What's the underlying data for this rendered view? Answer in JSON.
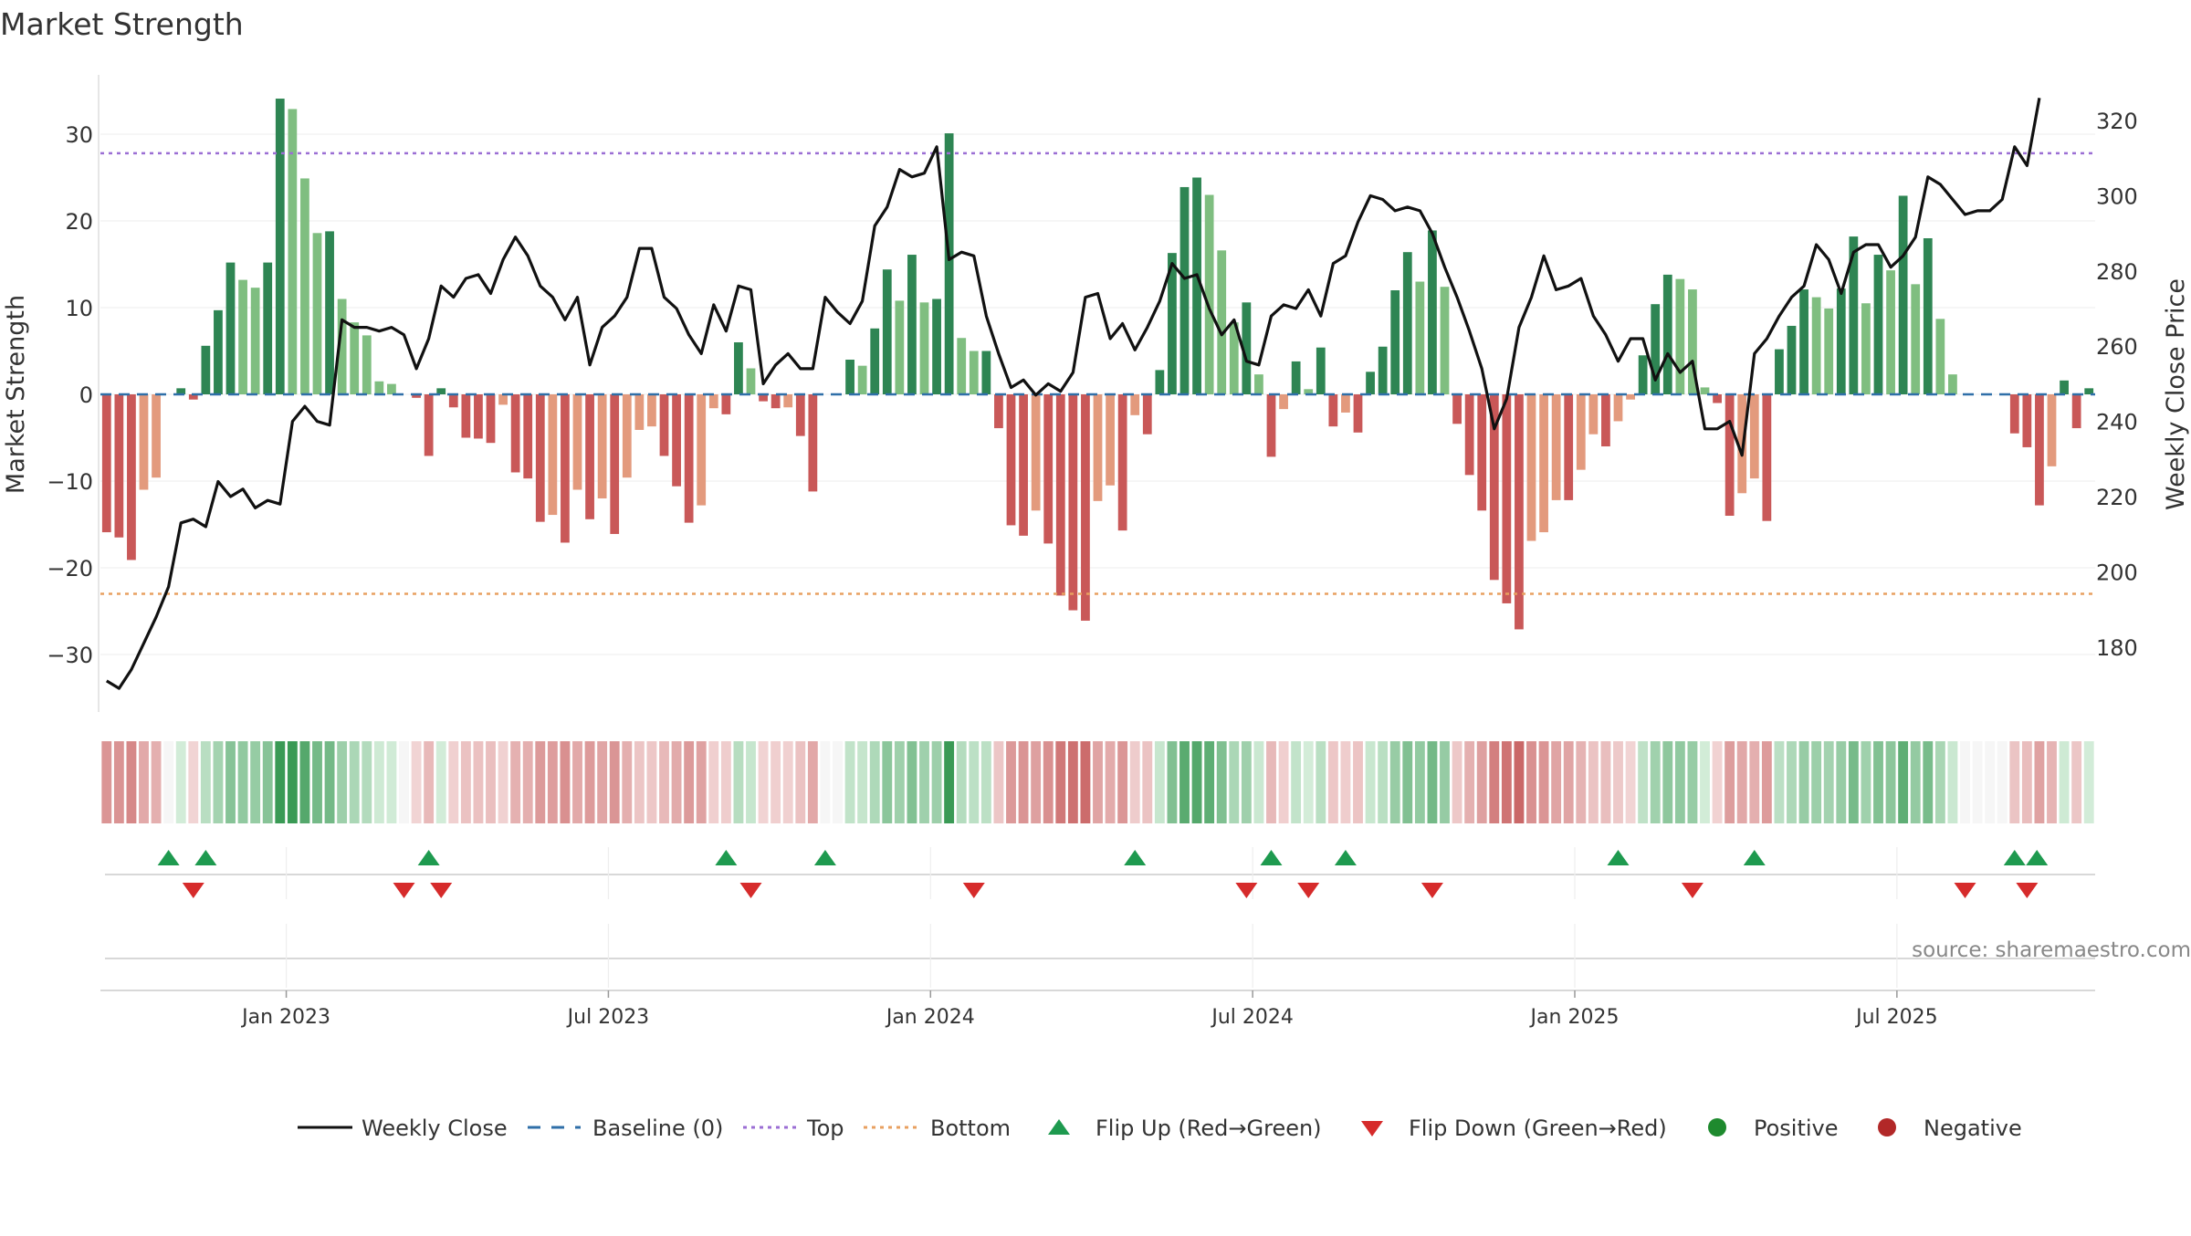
{
  "chart_data": {
    "type": "bar",
    "title": "Market Strength",
    "ylabel": "Market Strength",
    "y2label": "Weekly Close Price",
    "ylim": [
      -36,
      37
    ],
    "y2lim": [
      163,
      328
    ],
    "y_ticks": [
      30,
      20,
      10,
      0,
      -10,
      -20,
      -30
    ],
    "y_tick_labels": [
      "30",
      "20",
      "10",
      "0",
      "−10",
      "−20",
      "−30"
    ],
    "y2_ticks": [
      320,
      300,
      280,
      260,
      240,
      220,
      200,
      180
    ],
    "y2_tick_labels": [
      "320",
      "300",
      "280",
      "260",
      "240",
      "220",
      "200",
      "180"
    ],
    "x_ticks": [
      {
        "label": "Jan 2023",
        "week": 14.5
      },
      {
        "label": "Jul 2023",
        "week": 40.5
      },
      {
        "label": "Jan 2024",
        "week": 66.5
      },
      {
        "label": "Jul 2024",
        "week": 92.5
      },
      {
        "label": "Jan 2025",
        "week": 118.5
      },
      {
        "label": "Jul 2025",
        "week": 144.5
      }
    ],
    "top_level": 27.8,
    "bottom_level": -23,
    "strength": [
      -15.9,
      -16.5,
      -19.1,
      -11,
      -9.6,
      0,
      0.7,
      -0.6,
      5.6,
      9.7,
      15.2,
      13.2,
      12.3,
      15.2,
      34.1,
      32.9,
      24.9,
      18.6,
      18.8,
      11,
      8.3,
      6.8,
      1.5,
      1.2,
      0,
      -0.4,
      -7.1,
      0.7,
      -1.5,
      -5,
      -5.1,
      -5.6,
      -1.2,
      -9,
      -9.7,
      -14.7,
      -13.9,
      -17.1,
      -11,
      -14.4,
      -12,
      -16.1,
      -9.6,
      -4.1,
      -3.7,
      -7.1,
      -10.6,
      -14.8,
      -12.8,
      -1.6,
      -2.3,
      6,
      3,
      -0.8,
      -1.6,
      -1.5,
      -4.8,
      -11.2,
      0,
      0,
      4,
      3.3,
      7.6,
      14.4,
      10.8,
      16.1,
      10.6,
      11,
      30.1,
      6.5,
      5,
      5,
      -3.9,
      -15.1,
      -16.3,
      -13.4,
      -17.2,
      -23.2,
      -24.9,
      -26.1,
      -12.3,
      -10.5,
      -15.7,
      -2.4,
      -4.6,
      2.8,
      16.3,
      23.9,
      25,
      23,
      16.6,
      8.3,
      10.6,
      2.3,
      -7.2,
      -1.7,
      3.8,
      0.6,
      5.4,
      -3.7,
      -2.1,
      -4.4,
      2.6,
      5.5,
      12,
      16.4,
      13,
      18.9,
      12.4,
      -3.4,
      -9.3,
      -13.4,
      -21.4,
      -24.1,
      -27.1,
      -16.9,
      -15.9,
      -12.2,
      -12.2,
      -8.7,
      -4.6,
      -6,
      -3.1,
      -0.6,
      4.5,
      10.4,
      13.8,
      13.3,
      12.1,
      0.8,
      -1,
      -14,
      -11.4,
      -9.7,
      -14.6,
      5.2,
      7.9,
      12.1,
      11.2,
      9.9,
      12.2,
      18.2,
      10.5,
      16.1,
      14.3,
      22.9,
      12.7,
      18,
      8.7,
      2.3,
      0,
      0,
      0,
      0,
      -4.5,
      -6.1,
      -12.8,
      -8.3,
      1.6,
      -3.9,
      0.7
    ],
    "close": [
      171,
      169,
      174,
      181,
      188,
      196,
      213,
      214,
      212,
      224,
      220,
      222,
      217,
      219,
      218,
      240,
      244,
      240,
      239,
      267,
      265,
      265,
      264,
      265,
      263,
      254,
      262,
      276,
      273,
      278,
      279,
      274,
      283,
      289,
      284,
      276,
      273,
      267,
      273,
      255,
      265,
      268,
      273,
      286,
      286,
      273,
      270,
      263,
      258,
      271,
      264,
      276,
      275,
      250,
      255,
      258,
      254,
      254,
      273,
      269,
      266,
      272,
      292,
      297,
      307,
      305,
      306,
      313,
      283,
      285,
      284,
      268,
      258,
      249,
      251,
      247,
      250,
      248,
      253,
      273,
      274,
      262,
      266,
      259,
      265,
      272,
      282,
      278,
      279,
      270,
      263,
      267,
      256,
      255,
      268,
      271,
      270,
      275,
      268,
      282,
      284,
      293,
      300,
      299,
      296,
      297,
      296,
      290,
      281,
      273,
      264,
      254,
      238,
      246,
      265,
      273,
      284,
      275,
      276,
      278,
      268,
      263,
      256,
      262,
      262,
      251,
      258,
      253,
      256,
      238,
      238,
      240,
      231,
      258,
      262,
      268,
      273,
      276,
      287,
      283,
      274,
      285,
      287,
      287,
      281,
      284,
      289,
      305,
      303,
      299,
      295,
      296,
      296,
      299,
      313,
      308,
      326
    ],
    "flip_up_weeks": [
      5,
      8,
      26,
      50,
      58,
      83,
      94,
      100,
      122,
      133,
      154,
      155.8
    ],
    "flip_down_weeks": [
      7,
      24,
      27,
      52,
      70,
      92,
      97,
      107,
      128,
      150,
      155
    ],
    "colors": {
      "pos_strong": "#2e8553",
      "pos_light": "#7fbe80",
      "neg_strong": "#c95858",
      "neg_light": "#e39a7d",
      "baseline": "#2f6fa8",
      "top": "#9b6ed4",
      "bottom": "#e8a060",
      "flip_up": "#1e9a4f",
      "flip_down": "#d62b2b",
      "positive_marker": "#1e8a2e",
      "negative_marker": "#b22828",
      "close_line": "#111111"
    },
    "legend": {
      "weekly_close": "Weekly Close",
      "baseline": "Baseline (0)",
      "top": "Top",
      "bottom": "Bottom",
      "flip_up": "Flip Up (Red→Green)",
      "flip_down": "Flip Down (Green→Red)",
      "positive": "Positive",
      "negative": "Negative"
    },
    "source": "source: sharemaestro.com"
  }
}
